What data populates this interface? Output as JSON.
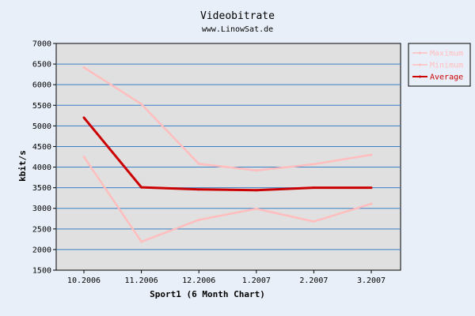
{
  "chart_data": {
    "type": "line",
    "title": "Videobitrate",
    "subtitle": "www.LinowSat.de",
    "xlabel": "Sport1 (6 Month Chart)",
    "ylabel": "kbit/s",
    "categories": [
      "10.2006",
      "11.2006",
      "12.2006",
      "1.2007",
      "2.2007",
      "3.2007"
    ],
    "ylim": [
      1500,
      7000
    ],
    "yticks": [
      1500,
      2000,
      2500,
      3000,
      3500,
      4000,
      4500,
      5000,
      5500,
      6000,
      6500,
      7000
    ],
    "grid": true,
    "legend_position": "right",
    "series": [
      {
        "name": "Maximum",
        "values": [
          6420,
          5530,
          4080,
          3920,
          4070,
          4300
        ],
        "color": "#ffbdbd"
      },
      {
        "name": "Minimum",
        "values": [
          4250,
          2190,
          2720,
          2990,
          2680,
          3110
        ],
        "color": "#ffbdbd"
      },
      {
        "name": "Average",
        "values": [
          5200,
          3510,
          3460,
          3440,
          3500,
          3500
        ],
        "color": "#cc0000"
      }
    ],
    "colors": {
      "background": "#e8eff8",
      "plot_background": "#e0e0e0",
      "grid": "#3b7fc4"
    }
  }
}
